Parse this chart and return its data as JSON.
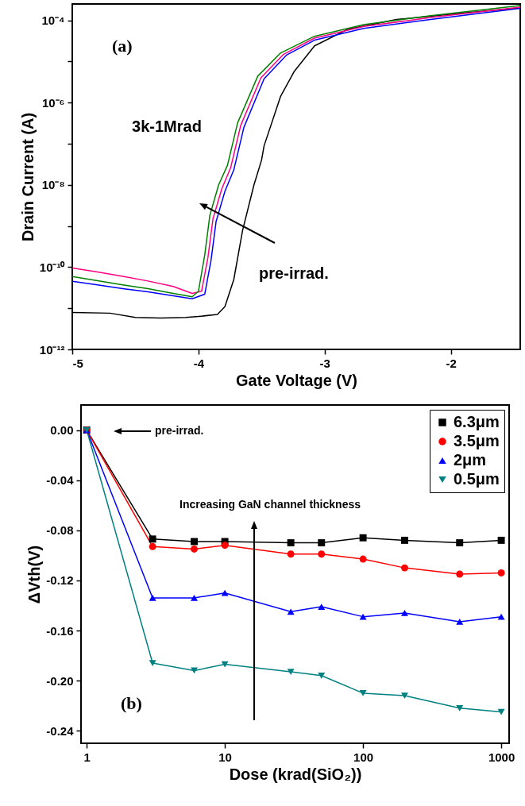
{
  "chart_data": [
    {
      "type": "line",
      "xlabel": "Gate Voltage (V)",
      "ylabel": "Drain Current (A)",
      "log": "y",
      "legend": false,
      "xlim": [
        -5,
        -1.45
      ],
      "xticks": [
        -5,
        -4,
        -3,
        -2
      ],
      "ylim": [
        1e-12,
        0.00025
      ],
      "yticks": [
        {
          "value": 1e-12,
          "label": "10⁻¹²"
        },
        {
          "value": 1e-11,
          "label": null
        },
        {
          "value": 1e-10,
          "label": "10⁻¹⁰"
        },
        {
          "value": 1e-09,
          "label": null
        },
        {
          "value": 1e-08,
          "label": "10⁻⁸"
        },
        {
          "value": 1e-07,
          "label": null
        },
        {
          "value": 1e-06,
          "label": "10⁻⁶"
        },
        {
          "value": 1e-05,
          "label": null
        },
        {
          "value": 0.0001,
          "label": "10⁻⁴"
        }
      ],
      "annotations": [
        "(a)",
        "3k-1Mrad",
        "pre-irrad."
      ],
      "series": [
        {
          "color": "#000000",
          "x": [
            -5,
            -4.7,
            -4.5,
            -4.3,
            -4.1,
            -4.0,
            -3.85,
            -3.79,
            -3.72,
            -3.65,
            -3.56,
            -3.5,
            -3.48,
            -3.35,
            -3.24,
            -3.08,
            -2.82,
            -2.43,
            -1.91,
            -1.45
          ],
          "values": [
            7.9e-12,
            7.6e-12,
            6e-12,
            5.8e-12,
            6e-12,
            6.3e-12,
            7.1e-12,
            1.1e-11,
            5e-11,
            7.9e-10,
            1e-08,
            4e-08,
            8.9e-08,
            1.4e-06,
            5.8e-06,
            2.4e-05,
            6e-05,
            0.000105,
            0.00015,
            0.0002
          ]
        },
        {
          "color": "#0000ff",
          "x": [
            -5,
            -4.8,
            -4.6,
            -4.4,
            -4.2,
            -4.05,
            -3.95,
            -3.9,
            -3.86,
            -3.79,
            -3.72,
            -3.64,
            -3.48,
            -3.3,
            -3.08,
            -2.69,
            -2.16,
            -1.45
          ],
          "values": [
            4.5e-11,
            3.7e-11,
            3e-11,
            2.5e-11,
            2e-11,
            1.7e-11,
            2.2e-11,
            1.5e-10,
            1.3e-09,
            7e-09,
            2.3e-08,
            2.5e-07,
            3.8e-06,
            1.45e-05,
            3.3e-05,
            6.4e-05,
            0.000105,
            0.000195
          ]
        },
        {
          "color": "#ff0080",
          "x": [
            -5,
            -4.8,
            -4.6,
            -4.4,
            -4.2,
            -4.05,
            -3.975,
            -3.925,
            -3.885,
            -3.815,
            -3.745,
            -3.665,
            -3.505,
            -3.325,
            -3.08,
            -2.69,
            -2.16,
            -1.45
          ],
          "values": [
            9.5e-11,
            7.6e-11,
            6e-11,
            4.6e-11,
            3.4e-11,
            2.3e-11,
            2.6e-11,
            1.7e-10,
            1.5e-09,
            8e-09,
            2.6e-08,
            2.8e-07,
            4e-06,
            1.5e-05,
            3.7e-05,
            7.1e-05,
            0.000117,
            0.00021
          ]
        },
        {
          "color": "#008000",
          "x": [
            -5,
            -4.8,
            -4.6,
            -4.4,
            -4.2,
            -4.05,
            -4.0,
            -3.95,
            -3.91,
            -3.84,
            -3.77,
            -3.69,
            -3.53,
            -3.35,
            -3.08,
            -2.69,
            -2.16,
            -1.45
          ],
          "values": [
            5.9e-11,
            4.7e-11,
            3.7e-11,
            3e-11,
            2.3e-11,
            1.9e-11,
            2.6e-11,
            2e-10,
            1.8e-09,
            1e-08,
            3e-08,
            3.2e-07,
            4.4e-06,
            1.6e-05,
            4.1e-05,
            7.9e-05,
            0.00013,
            0.00023
          ]
        }
      ]
    },
    {
      "type": "line",
      "xlabel": "Dose (krad(SiO₂))",
      "ylabel": "ΔVth(V)",
      "log": "x",
      "legend": "top right",
      "x": [
        1,
        3,
        6,
        10,
        30,
        50,
        100,
        200,
        500,
        1000
      ],
      "xlim": [
        0.91,
        1140
      ],
      "xticks": [
        1,
        10,
        100,
        1000
      ],
      "ylim": [
        -0.25,
        0.02
      ],
      "yticks": [
        {
          "value": 0,
          "label": "0.00"
        },
        -0.04,
        -0.08,
        -0.12,
        -0.16,
        {
          "value": -0.2,
          "label": "-0.20"
        },
        -0.24
      ],
      "annotations": [
        "(b)",
        "pre-irrad.",
        "Increasing GaN channel thickness"
      ],
      "series": [
        {
          "name": "6.3μm",
          "color": "#000000",
          "marker": "square",
          "values": [
            0,
            -0.087,
            -0.089,
            -0.089,
            -0.09,
            -0.09,
            -0.086,
            -0.088,
            -0.09,
            -0.088
          ]
        },
        {
          "name": "3.5μm",
          "color": "#ff0000",
          "marker": "circle",
          "values": [
            0,
            -0.093,
            -0.095,
            -0.092,
            -0.099,
            -0.099,
            -0.103,
            -0.11,
            -0.115,
            -0.114
          ]
        },
        {
          "name": "2μm",
          "color": "#0000ff",
          "marker": "triangle",
          "values": [
            0,
            -0.134,
            -0.134,
            -0.13,
            -0.145,
            -0.141,
            -0.149,
            -0.146,
            -0.153,
            -0.149
          ]
        },
        {
          "name": "0.5μm",
          "color": "#008080",
          "marker": "triangle-down",
          "values": [
            0,
            -0.186,
            -0.192,
            -0.187,
            -0.193,
            -0.196,
            -0.21,
            -0.212,
            -0.222,
            -0.225
          ]
        }
      ]
    }
  ]
}
